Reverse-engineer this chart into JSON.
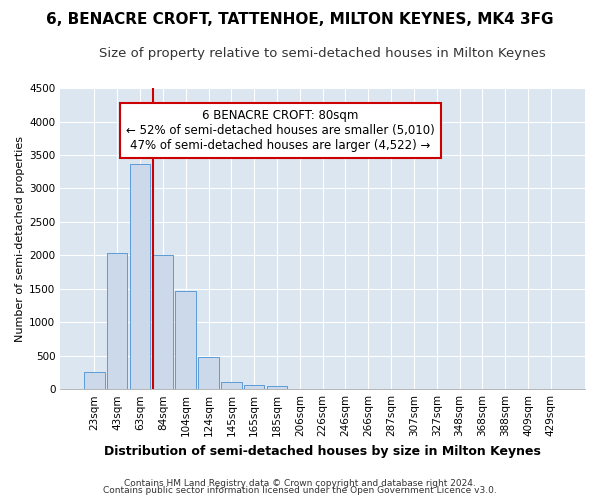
{
  "title1": "6, BENACRE CROFT, TATTENHOE, MILTON KEYNES, MK4 3FG",
  "title2": "Size of property relative to semi-detached houses in Milton Keynes",
  "xlabel": "Distribution of semi-detached houses by size in Milton Keynes",
  "ylabel": "Number of semi-detached properties",
  "footnote1": "Contains HM Land Registry data © Crown copyright and database right 2024.",
  "footnote2": "Contains public sector information licensed under the Open Government Licence v3.0.",
  "annotation_title": "6 BENACRE CROFT: 80sqm",
  "annotation_line1": "← 52% of semi-detached houses are smaller (5,010)",
  "annotation_line2": "47% of semi-detached houses are larger (4,522) →",
  "bar_labels": [
    "23sqm",
    "43sqm",
    "63sqm",
    "84sqm",
    "104sqm",
    "124sqm",
    "145sqm",
    "165sqm",
    "185sqm",
    "206sqm",
    "226sqm",
    "246sqm",
    "266sqm",
    "287sqm",
    "307sqm",
    "327sqm",
    "348sqm",
    "368sqm",
    "388sqm",
    "409sqm",
    "429sqm"
  ],
  "bar_values": [
    255,
    2030,
    3360,
    2010,
    1460,
    480,
    100,
    60,
    50,
    0,
    0,
    0,
    0,
    0,
    0,
    0,
    0,
    0,
    0,
    0,
    0
  ],
  "bar_color": "#ccd9ea",
  "bar_edge_color": "#5b9bd5",
  "marker_color": "#cc0000",
  "ylim": [
    0,
    4500
  ],
  "yticks": [
    0,
    500,
    1000,
    1500,
    2000,
    2500,
    3000,
    3500,
    4000,
    4500
  ],
  "fig_bg_color": "#ffffff",
  "plot_bg_color": "#dce6f1",
  "grid_color": "#ffffff",
  "annotation_box_color": "#ffffff",
  "annotation_box_edge": "#cc0000",
  "title1_fontsize": 11,
  "title2_fontsize": 9.5,
  "xlabel_fontsize": 9,
  "ylabel_fontsize": 8,
  "tick_fontsize": 7.5,
  "footnote_fontsize": 6.5,
  "annotation_fontsize": 8.5
}
